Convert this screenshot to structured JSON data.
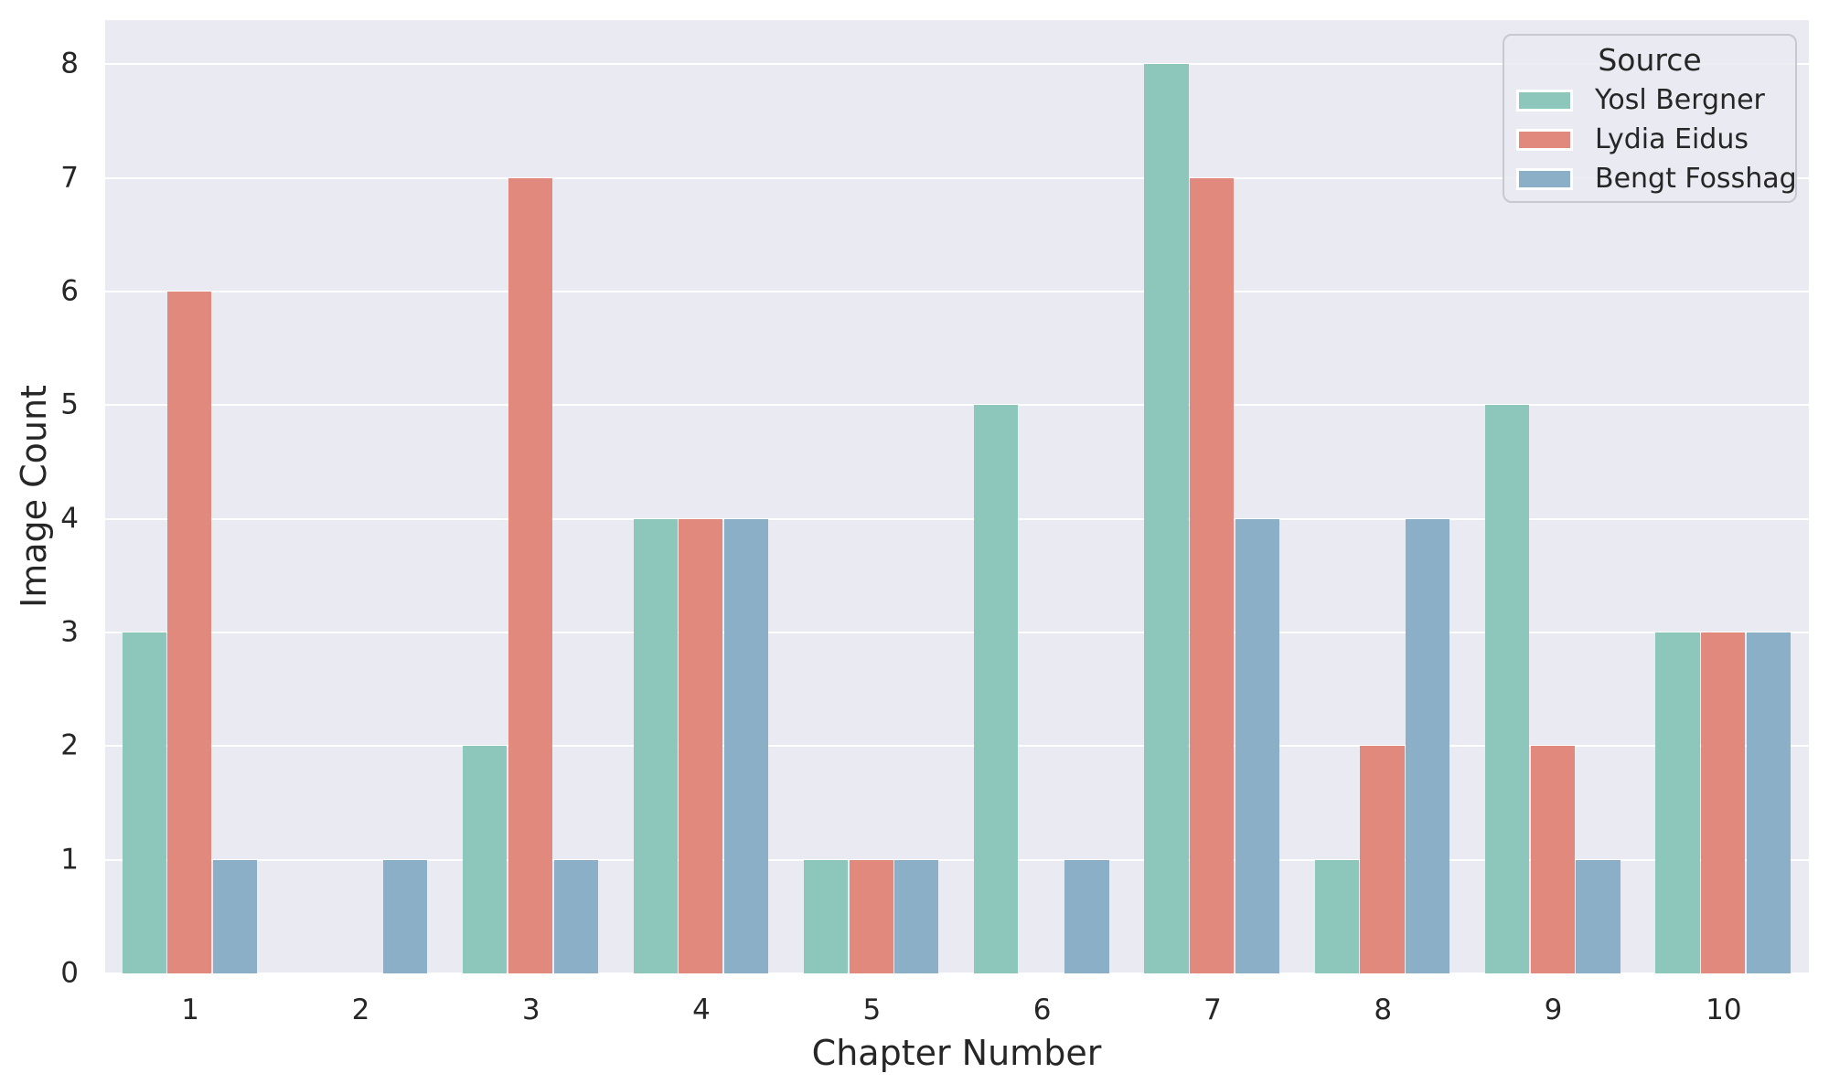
{
  "figure": {
    "background": "#ffffff",
    "plot_background": "#eaeaf2",
    "grid_color": "#ffffff",
    "text_color": "#262626"
  },
  "chart_data": {
    "type": "bar",
    "title": "",
    "xlabel": "Chapter Number",
    "ylabel": "Image Count",
    "categories": [
      "1",
      "2",
      "3",
      "4",
      "5",
      "6",
      "7",
      "8",
      "9",
      "10"
    ],
    "y_ticks": [
      0,
      1,
      2,
      3,
      4,
      5,
      6,
      7,
      8
    ],
    "ylim": [
      0,
      8.39
    ],
    "grid": true,
    "legend": {
      "title": "Source",
      "position": "upper right"
    },
    "series": [
      {
        "name": "Yosl Bergner",
        "color": "#8dc6ba",
        "values": [
          3,
          0,
          2,
          4,
          1,
          5,
          8,
          1,
          5,
          3
        ]
      },
      {
        "name": "Lydia Eidus",
        "color": "#e2897e",
        "values": [
          6,
          0,
          7,
          4,
          1,
          0,
          7,
          2,
          2,
          3
        ]
      },
      {
        "name": "Bengt Fosshag",
        "color": "#8bafc6",
        "values": [
          1,
          1,
          1,
          4,
          1,
          1,
          4,
          4,
          1,
          3
        ]
      }
    ]
  }
}
